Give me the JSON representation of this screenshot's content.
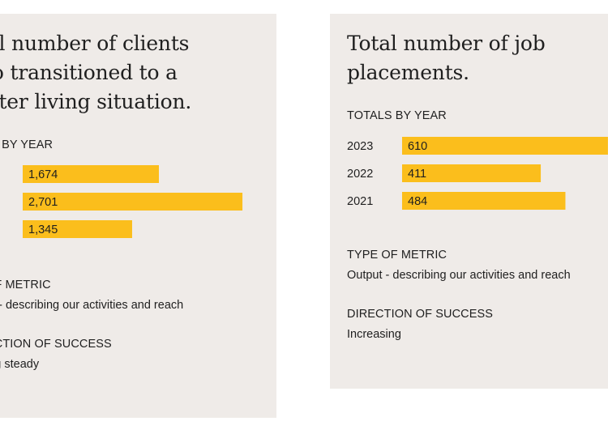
{
  "colors": {
    "card_bg": "#efebe8",
    "bar": "#fbbe1c",
    "text": "#1f1f1f"
  },
  "left_card": {
    "title_lines": [
      "tal number of clients",
      "ho transitioned to a",
      "etter living situation."
    ],
    "totals_label": "LS BY YEAR",
    "type_label": "OF METRIC",
    "type_value": "ut - describing our activities and reach",
    "direction_label": "ECTION OF SUCCESS",
    "direction_value": "ing steady"
  },
  "right_card": {
    "title_lines": [
      "Total number of job",
      "placements."
    ],
    "totals_label": "TOTALS BY YEAR",
    "type_label": "TYPE OF METRIC",
    "type_value": "Output - describing our activities and reach",
    "direction_label": "DIRECTION OF SUCCESS",
    "direction_value": "Increasing"
  },
  "chart_data": [
    {
      "type": "bar",
      "orientation": "horizontal",
      "title": "Total number of clients who transitioned to a better living situation.",
      "categories": [
        "",
        "",
        ""
      ],
      "values": [
        1674,
        2701,
        1345
      ],
      "value_labels": [
        "1,674",
        "2,701",
        "1,345"
      ],
      "xlim": [
        0,
        2800
      ],
      "grid": false
    },
    {
      "type": "bar",
      "orientation": "horizontal",
      "title": "Total number of job placements.",
      "categories": [
        "2023",
        "2022",
        "2021"
      ],
      "values": [
        610,
        411,
        484
      ],
      "value_labels": [
        "610",
        "411",
        "484"
      ],
      "xlim": [
        0,
        800
      ],
      "grid": false
    }
  ]
}
